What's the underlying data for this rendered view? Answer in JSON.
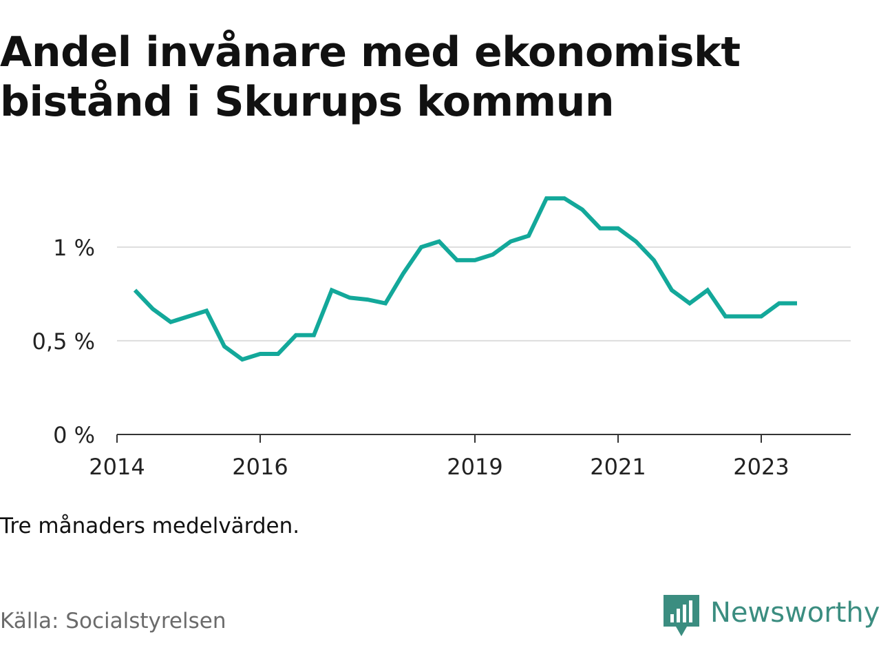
{
  "title": "Andel invånare med ekonomiskt bistånd i Skurups kommun",
  "note": "Tre månaders medelvärden.",
  "source": "Källa: Socialstyrelsen",
  "brand": {
    "name": "Newsworthy",
    "icon": "newsworthy-logo-icon"
  },
  "colors": {
    "line": "#13a89a",
    "brand": "#3b8d80",
    "grid": "#dddddd",
    "axis": "#333333"
  },
  "chart_data": {
    "type": "line",
    "title": "Andel invånare med ekonomiskt bistånd i Skurups kommun",
    "xlabel": "",
    "ylabel": "",
    "grid": true,
    "legend": "none",
    "xlim": [
      2014.0,
      2024.25
    ],
    "ylim": [
      0,
      1.4
    ],
    "x_ticks": [
      {
        "value": 2014,
        "label": "2014"
      },
      {
        "value": 2016,
        "label": "2016"
      },
      {
        "value": 2019,
        "label": "2019"
      },
      {
        "value": 2021,
        "label": "2021"
      },
      {
        "value": 2023,
        "label": "2023"
      }
    ],
    "y_ticks": [
      {
        "value": 0,
        "label": "0 %"
      },
      {
        "value": 0.5,
        "label": "0,5 %"
      },
      {
        "value": 1,
        "label": "1 %"
      }
    ],
    "series": [
      {
        "x": [
          2014.25,
          2014.5,
          2014.75,
          2015.0,
          2015.25,
          2015.5,
          2015.75,
          2016.0,
          2016.25,
          2016.5,
          2016.75,
          2017.0,
          2017.25,
          2017.5,
          2017.75,
          2018.0,
          2018.25,
          2018.5,
          2018.75,
          2019.0,
          2019.25,
          2019.5,
          2019.75,
          2020.0,
          2020.25,
          2020.5,
          2020.75,
          2021.0,
          2021.25,
          2021.5,
          2021.75,
          2022.0,
          2022.25,
          2022.5,
          2022.75,
          2023.0,
          2023.25,
          2023.5
        ],
        "values": [
          0.77,
          0.67,
          0.6,
          0.63,
          0.66,
          0.47,
          0.4,
          0.43,
          0.43,
          0.53,
          0.53,
          0.77,
          0.73,
          0.72,
          0.7,
          0.86,
          1.0,
          1.03,
          0.93,
          0.93,
          0.96,
          1.03,
          1.06,
          1.26,
          1.26,
          1.2,
          1.1,
          1.1,
          1.03,
          0.93,
          0.77,
          0.7,
          0.77,
          0.63,
          0.63,
          0.63,
          0.7,
          0.7
        ]
      }
    ]
  }
}
